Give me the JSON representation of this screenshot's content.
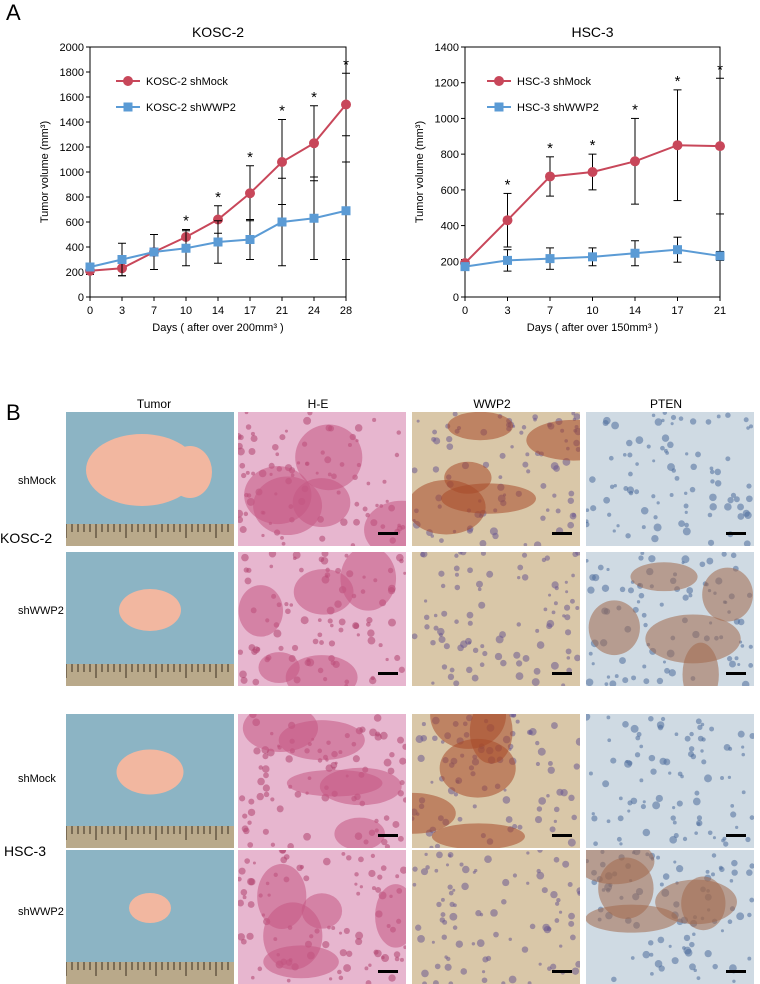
{
  "panel_a": {
    "letter": "A"
  },
  "panel_b": {
    "letter": "B",
    "columns": [
      "Tumor",
      "H-E",
      "WWP2",
      "PTEN"
    ],
    "rows": [
      {
        "group": "KOSC-2",
        "condition": "shMock"
      },
      {
        "group": "KOSC-2",
        "condition": "shWWP2"
      },
      {
        "group": "HSC-3",
        "condition": "shMock"
      },
      {
        "group": "HSC-3",
        "condition": "shWWP2"
      }
    ],
    "groups": [
      "KOSC-2",
      "HSC-3"
    ]
  },
  "colors": {
    "mock": "#c8475a",
    "wwp2": "#5b9bd5"
  },
  "chart_data": [
    {
      "type": "line",
      "title": "KOSC-2",
      "xlabel": "Days ( after over 200mm³ )",
      "ylabel": "Tumor volume (mm³)",
      "x": [
        0,
        3,
        7,
        10,
        14,
        17,
        21,
        24,
        28
      ],
      "ylim": [
        0,
        2000
      ],
      "yticks": [
        0,
        200,
        400,
        600,
        800,
        1000,
        1200,
        1400,
        1600,
        1800,
        2000
      ],
      "series": [
        {
          "name": "KOSC-2 shMock",
          "values": [
            210,
            230,
            360,
            480,
            620,
            830,
            1080,
            1230,
            1540
          ],
          "err": [
            30,
            60,
            140,
            60,
            110,
            220,
            340,
            300,
            250
          ],
          "marker": "circle"
        },
        {
          "name": "KOSC-2 shWWP2",
          "values": [
            240,
            300,
            360,
            390,
            440,
            460,
            600,
            630,
            690
          ],
          "err": [
            30,
            130,
            140,
            140,
            170,
            160,
            350,
            330,
            390
          ],
          "marker": "square"
        }
      ],
      "significant": [
        false,
        false,
        false,
        true,
        true,
        true,
        true,
        true,
        true
      ],
      "star": "*"
    },
    {
      "type": "line",
      "title": "HSC-3",
      "xlabel": "Days ( after over 150mm³ )",
      "ylabel": "Tumor volume (mm³)",
      "x": [
        0,
        3,
        7,
        10,
        14,
        17,
        21
      ],
      "ylim": [
        0,
        1400
      ],
      "yticks": [
        0,
        200,
        400,
        600,
        800,
        1000,
        1200,
        1400
      ],
      "series": [
        {
          "name": "HSC-3 shMock",
          "values": [
            190,
            430,
            675,
            700,
            760,
            850,
            845
          ],
          "err": [
            20,
            150,
            110,
            100,
            240,
            310,
            380
          ],
          "marker": "circle"
        },
        {
          "name": "HSC-3 shWWP2",
          "values": [
            170,
            205,
            215,
            225,
            245,
            265,
            230
          ],
          "err": [
            20,
            60,
            60,
            50,
            70,
            70,
            25
          ],
          "marker": "square"
        }
      ],
      "significant": [
        false,
        true,
        true,
        true,
        true,
        true,
        true
      ],
      "star": "*"
    }
  ]
}
